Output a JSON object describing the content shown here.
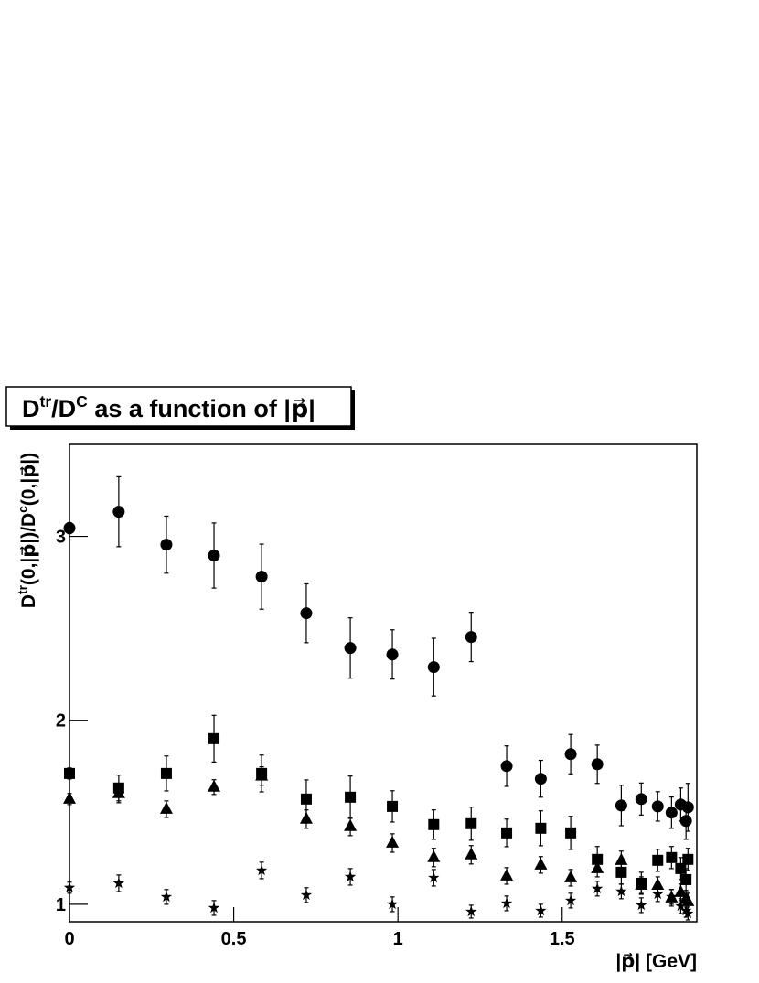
{
  "chart_data": {
    "type": "scatter",
    "title": [
      "D",
      "tr",
      "/D",
      "C",
      " as a function of |p⃗|"
    ],
    "y_label": [
      "D",
      "tr",
      "(0,|p⃗|)/D",
      "c",
      "(0,|p⃗|)"
    ],
    "x_label": "|p⃗| [GeV]",
    "xlim": [
      0,
      1.91
    ],
    "ylim": [
      0.905,
      3.5
    ],
    "xticks": [
      0,
      0.5,
      1,
      1.5
    ],
    "yticks": [
      1,
      2,
      3
    ],
    "grid": false,
    "x": [
      0,
      0.15,
      0.295,
      0.44,
      0.585,
      0.721,
      0.855,
      0.983,
      1.109,
      1.223,
      1.331,
      1.435,
      1.526,
      1.607,
      1.68,
      1.741,
      1.791,
      1.833,
      1.861,
      1.877,
      1.883
    ],
    "series": [
      {
        "marker": "circle",
        "color": "#000000",
        "values": [
          3.045,
          3.134,
          2.955,
          2.896,
          2.781,
          2.582,
          2.393,
          2.358,
          2.289,
          2.453,
          1.751,
          1.682,
          1.816,
          1.761,
          1.537,
          1.572,
          1.532,
          1.498,
          1.542,
          1.453,
          1.527
        ],
        "errors": [
          0.03,
          0.19,
          0.155,
          0.177,
          0.177,
          0.16,
          0.164,
          0.134,
          0.157,
          0.134,
          0.11,
          0.1,
          0.107,
          0.104,
          0.11,
          0.087,
          0.08,
          0.085,
          0.09,
          0.1,
          0.13
        ]
      },
      {
        "marker": "square",
        "color": "#000000",
        "values": [
          1.711,
          1.632,
          1.711,
          1.9,
          1.711,
          1.572,
          1.582,
          1.532,
          1.433,
          1.438,
          1.388,
          1.413,
          1.388,
          1.244,
          1.174,
          1.114,
          1.239,
          1.254,
          1.194,
          1.134,
          1.244
        ],
        "errors": [
          0.03,
          0.07,
          0.095,
          0.127,
          0.1,
          0.104,
          0.115,
          0.085,
          0.08,
          0.09,
          0.075,
          0.095,
          0.09,
          0.07,
          0.065,
          0.06,
          0.06,
          0.06,
          0.06,
          0.06,
          0.06
        ]
      },
      {
        "marker": "triangle",
        "color": "#000000",
        "values": [
          1.572,
          1.602,
          1.517,
          1.637,
          1.697,
          1.463,
          1.423,
          1.333,
          1.254,
          1.269,
          1.154,
          1.214,
          1.144,
          1.194,
          1.239,
          1.104,
          1.104,
          1.035,
          1.065,
          1.03,
          1.015
        ],
        "errors": [
          0.03,
          0.05,
          0.045,
          0.04,
          0.05,
          0.05,
          0.05,
          0.05,
          0.05,
          0.05,
          0.045,
          0.045,
          0.045,
          0.045,
          0.05,
          0.045,
          0.045,
          0.045,
          0.045,
          0.045,
          0.045
        ]
      },
      {
        "marker": "star",
        "color": "#000000",
        "values": [
          1.09,
          1.114,
          1.04,
          0.98,
          1.184,
          1.05,
          1.149,
          1.0,
          1.144,
          0.96,
          1.005,
          0.965,
          1.02,
          1.085,
          1.07,
          0.995,
          1.055,
          1.04,
          0.99,
          0.965,
          0.95
        ],
        "errors": [
          0.03,
          0.045,
          0.04,
          0.04,
          0.045,
          0.04,
          0.045,
          0.04,
          0.045,
          0.035,
          0.04,
          0.035,
          0.04,
          0.04,
          0.04,
          0.04,
          0.04,
          0.04,
          0.04,
          0.035,
          0.035
        ]
      }
    ]
  }
}
